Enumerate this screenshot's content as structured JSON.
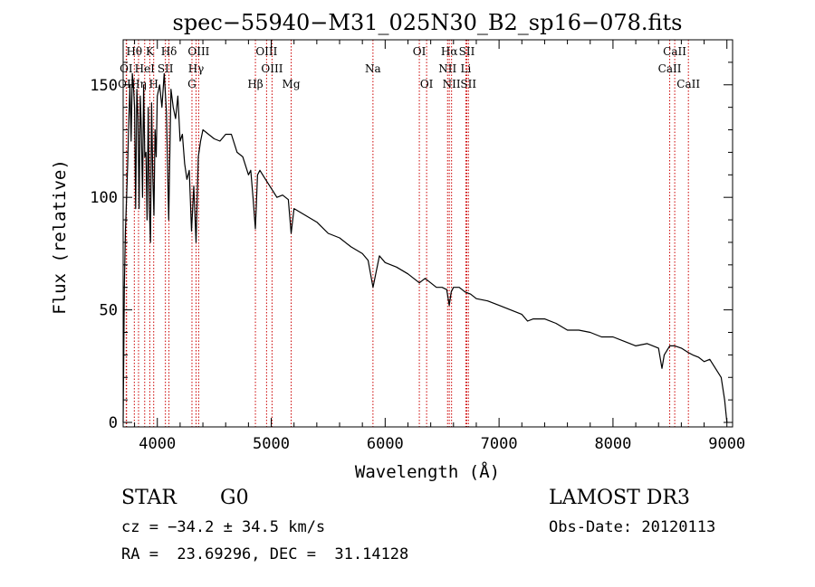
{
  "chart_data": {
    "type": "line",
    "title": "spec−55940−M31_025N30_B2_sp16−078.fits",
    "xlabel": "Wavelength (Å)",
    "ylabel": "Flux (relative)",
    "xlim": [
      3700,
      9050
    ],
    "ylim": [
      -2,
      170
    ],
    "xticks": [
      4000,
      5000,
      6000,
      7000,
      8000,
      9000
    ],
    "yticks": [
      0,
      50,
      100,
      150
    ],
    "grid": false,
    "colors": {
      "spectrum": "#000000",
      "lines": "#cc0000",
      "axes": "#000000"
    },
    "spectral_lines": [
      {
        "label": "Hθ",
        "wavelength": 3798,
        "row": 0
      },
      {
        "label": "K",
        "wavelength": 3934,
        "row": 0
      },
      {
        "label": "Hδ",
        "wavelength": 4102,
        "row": 0
      },
      {
        "label": "OIII",
        "wavelength": 4363,
        "row": 0
      },
      {
        "label": "OIII",
        "wavelength": 4959,
        "row": 0
      },
      {
        "label": "OI",
        "wavelength": 6300,
        "row": 0
      },
      {
        "label": "Hα",
        "wavelength": 6563,
        "row": 0
      },
      {
        "label": "SII",
        "wavelength": 6717,
        "row": 0
      },
      {
        "label": "CaII",
        "wavelength": 8542,
        "row": 0
      },
      {
        "label": "OI",
        "wavelength": 3727,
        "row": 1
      },
      {
        "label": "HeI",
        "wavelength": 3889,
        "row": 1
      },
      {
        "label": "SII",
        "wavelength": 4071,
        "row": 1
      },
      {
        "label": "Hγ",
        "wavelength": 4340,
        "row": 1
      },
      {
        "label": "OIII",
        "wavelength": 5007,
        "row": 1
      },
      {
        "label": "Na",
        "wavelength": 5893,
        "row": 1
      },
      {
        "label": "NII",
        "wavelength": 6548,
        "row": 1
      },
      {
        "label": "Li",
        "wavelength": 6708,
        "row": 1
      },
      {
        "label": "CaII",
        "wavelength": 8498,
        "row": 1
      },
      {
        "label": "OII",
        "wavelength": 3730,
        "row": 2
      },
      {
        "label": "Hη",
        "wavelength": 3835,
        "row": 2
      },
      {
        "label": "H",
        "wavelength": 3968,
        "row": 2
      },
      {
        "label": "G",
        "wavelength": 4304,
        "row": 2
      },
      {
        "label": "Hβ",
        "wavelength": 4861,
        "row": 2
      },
      {
        "label": "Mg",
        "wavelength": 5175,
        "row": 2
      },
      {
        "label": "OI",
        "wavelength": 6364,
        "row": 2
      },
      {
        "label": "NII",
        "wavelength": 6583,
        "row": 2
      },
      {
        "label": "SII",
        "wavelength": 6731,
        "row": 2
      },
      {
        "label": "CaII",
        "wavelength": 8662,
        "row": 2
      }
    ],
    "series": [
      {
        "name": "spectrum",
        "x": [
          3700,
          3710,
          3720,
          3730,
          3740,
          3750,
          3760,
          3770,
          3780,
          3790,
          3800,
          3810,
          3820,
          3830,
          3840,
          3850,
          3860,
          3870,
          3880,
          3890,
          3900,
          3910,
          3920,
          3930,
          3940,
          3950,
          3960,
          3970,
          3980,
          3990,
          4000,
          4020,
          4040,
          4060,
          4080,
          4100,
          4120,
          4140,
          4160,
          4180,
          4200,
          4220,
          4240,
          4260,
          4280,
          4300,
          4320,
          4340,
          4360,
          4380,
          4400,
          4450,
          4500,
          4550,
          4600,
          4650,
          4700,
          4750,
          4800,
          4820,
          4840,
          4861,
          4880,
          4900,
          4950,
          5000,
          5050,
          5100,
          5150,
          5175,
          5200,
          5300,
          5400,
          5500,
          5600,
          5700,
          5800,
          5850,
          5893,
          5950,
          6000,
          6100,
          6200,
          6300,
          6350,
          6400,
          6450,
          6500,
          6540,
          6563,
          6580,
          6600,
          6650,
          6700,
          6750,
          6800,
          6900,
          7000,
          7100,
          7200,
          7250,
          7300,
          7400,
          7500,
          7600,
          7700,
          7800,
          7900,
          8000,
          8100,
          8200,
          8300,
          8400,
          8430,
          8450,
          8498,
          8542,
          8600,
          8662,
          8700,
          8750,
          8800,
          8850,
          8900,
          8950,
          8980,
          9000
        ],
        "y": [
          0,
          60,
          85,
          100,
          115,
          135,
          150,
          125,
          155,
          150,
          140,
          95,
          148,
          135,
          95,
          145,
          130,
          100,
          150,
          118,
          120,
          90,
          140,
          95,
          80,
          142,
          110,
          92,
          130,
          118,
          145,
          150,
          140,
          155,
          138,
          90,
          148,
          140,
          135,
          145,
          125,
          128,
          115,
          108,
          112,
          85,
          105,
          80,
          118,
          125,
          130,
          128,
          126,
          125,
          128,
          128,
          120,
          118,
          110,
          112,
          100,
          86,
          110,
          112,
          108,
          104,
          100,
          101,
          99,
          84,
          95,
          92,
          89,
          84,
          82,
          78,
          75,
          72,
          60,
          74,
          71,
          69,
          66,
          62,
          64,
          62,
          60,
          60,
          59,
          52,
          58,
          60,
          60,
          58,
          57,
          55,
          54,
          52,
          50,
          48,
          45,
          46,
          46,
          44,
          41,
          41,
          40,
          38,
          38,
          36,
          34,
          35,
          33,
          24,
          30,
          34,
          34,
          33,
          31,
          30,
          29,
          27,
          28,
          24,
          20,
          10,
          0
        ]
      }
    ],
    "info": {
      "object_class": "STAR",
      "subclass": "G0",
      "cz": "cz = −34.2 ± 34.5 km/s",
      "coords": "RA =  23.69296, DEC =  31.14128",
      "survey": "LAMOST DR3",
      "obs_date": "Obs-Date: 20120113"
    }
  }
}
